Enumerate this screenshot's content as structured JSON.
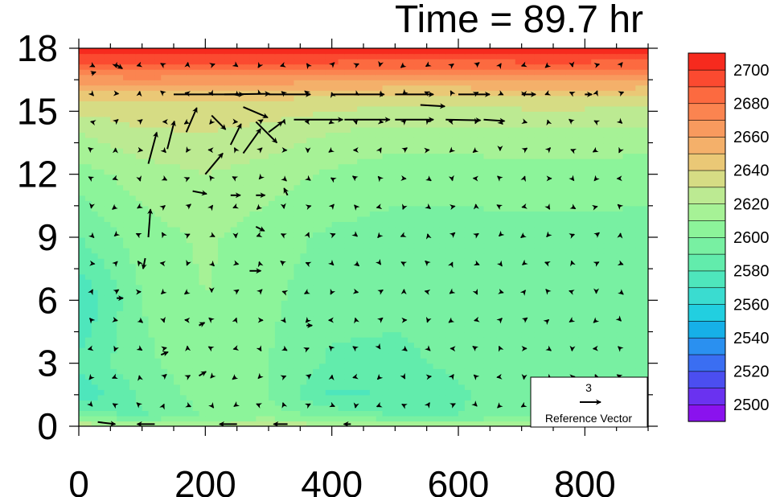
{
  "chart_data": {
    "type": "heatmap",
    "title": "Time = 89.7 hr",
    "x_ticks": [
      "0",
      "200",
      "400",
      "600",
      "800"
    ],
    "x_tick_values": [
      0,
      200,
      400,
      600,
      800
    ],
    "xlim": [
      0,
      900
    ],
    "y_ticks": [
      "0",
      "3",
      "6",
      "9",
      "12",
      "15",
      "18"
    ],
    "y_tick_values": [
      0,
      3,
      6,
      9,
      12,
      15,
      18
    ],
    "ylim": [
      0,
      18
    ],
    "colorbar": {
      "levels": [
        2490,
        2500,
        2510,
        2520,
        2530,
        2540,
        2550,
        2560,
        2570,
        2580,
        2590,
        2600,
        2610,
        2620,
        2630,
        2640,
        2650,
        2660,
        2670,
        2680,
        2690,
        2700,
        2710
      ],
      "labels": [
        "2500",
        "2520",
        "2540",
        "2560",
        "2580",
        "2600",
        "2620",
        "2640",
        "2660",
        "2680",
        "2700"
      ],
      "label_values": [
        2500,
        2520,
        2540,
        2560,
        2580,
        2600,
        2620,
        2640,
        2660,
        2680,
        2700
      ],
      "colors": [
        "#8a12ee",
        "#6a32f0",
        "#4b4ef0",
        "#3a6ef2",
        "#2a90f0",
        "#16b0e8",
        "#22cfe0",
        "#3adcd0",
        "#4ee6bc",
        "#62ecac",
        "#78f0a2",
        "#8cf49a",
        "#a6f296",
        "#bcea92",
        "#d6dc84",
        "#eac876",
        "#f4b06a",
        "#f89a5e",
        "#fb8450",
        "#fc6a40",
        "#fb4a30",
        "#f62a1e"
      ]
    },
    "field_rows": [
      {
        "y": 0.0,
        "values": [
          2630,
          2625,
          2625,
          2628,
          2625,
          2622,
          2620,
          2622,
          2620,
          2622
        ]
      },
      {
        "y": 0.5,
        "values": [
          2595,
          2588,
          2600,
          2605,
          2598,
          2590,
          2590,
          2598,
          2600,
          2598
        ]
      },
      {
        "y": 1.5,
        "values": [
          2572,
          2592,
          2605,
          2600,
          2578,
          2580,
          2588,
          2598,
          2596,
          2594
        ]
      },
      {
        "y": 3,
        "values": [
          2582,
          2598,
          2605,
          2600,
          2588,
          2588,
          2592,
          2596,
          2594,
          2594
        ]
      },
      {
        "y": 6,
        "values": [
          2570,
          2600,
          2610,
          2602,
          2594,
          2592,
          2592,
          2592,
          2592,
          2592
        ]
      },
      {
        "y": 9,
        "values": [
          2590,
          2605,
          2612,
          2604,
          2598,
          2596,
          2596,
          2596,
          2596,
          2596
        ]
      },
      {
        "y": 12,
        "values": [
          2605,
          2615,
          2620,
          2615,
          2608,
          2604,
          2604,
          2606,
          2606,
          2604
        ]
      },
      {
        "y": 14,
        "values": [
          2620,
          2628,
          2630,
          2626,
          2620,
          2616,
          2616,
          2618,
          2618,
          2616
        ]
      },
      {
        "y": 15.5,
        "values": [
          2638,
          2640,
          2640,
          2638,
          2635,
          2632,
          2632,
          2634,
          2634,
          2632
        ]
      },
      {
        "y": 16.5,
        "values": [
          2665,
          2666,
          2665,
          2664,
          2662,
          2660,
          2660,
          2662,
          2662,
          2660
        ]
      },
      {
        "y": 17.2,
        "values": [
          2690,
          2690,
          2690,
          2688,
          2686,
          2684,
          2684,
          2686,
          2686,
          2684
        ]
      },
      {
        "y": 18.0,
        "values": [
          2705,
          2705,
          2705,
          2705,
          2705,
          2705,
          2705,
          2705,
          2705,
          2705
        ]
      }
    ],
    "field_x": [
      0,
      100,
      200,
      300,
      400,
      500,
      600,
      700,
      800,
      900
    ],
    "vectors": [
      {
        "x": 20,
        "y": 16.8,
        "u": 0.6,
        "v": 0.2
      },
      {
        "x": 60,
        "y": 17.2,
        "u": 0.8,
        "v": -0.5
      },
      {
        "x": 150,
        "y": 15.8,
        "u": 10.0,
        "v": 0.0
      },
      {
        "x": 230,
        "y": 15.8,
        "u": 6.5,
        "v": 0.1
      },
      {
        "x": 300,
        "y": 15.8,
        "u": 6.0,
        "v": 0.0
      },
      {
        "x": 400,
        "y": 15.8,
        "u": 7.5,
        "v": 0.0
      },
      {
        "x": 500,
        "y": 15.8,
        "u": 5.5,
        "v": 0.0
      },
      {
        "x": 600,
        "y": 15.8,
        "u": 4.5,
        "v": 0.0
      },
      {
        "x": 700,
        "y": 15.8,
        "u": 2.0,
        "v": 0.0
      },
      {
        "x": 800,
        "y": 15.8,
        "u": 1.0,
        "v": 0.0
      },
      {
        "x": 340,
        "y": 14.6,
        "u": 7.0,
        "v": 0.0
      },
      {
        "x": 420,
        "y": 14.6,
        "u": 6.5,
        "v": 0.0
      },
      {
        "x": 500,
        "y": 14.6,
        "u": 5.5,
        "v": 0.0
      },
      {
        "x": 580,
        "y": 14.6,
        "u": 5.0,
        "v": -0.1
      },
      {
        "x": 640,
        "y": 14.6,
        "u": 3.0,
        "v": -0.2
      },
      {
        "x": 540,
        "y": 15.3,
        "u": 3.5,
        "v": -0.2
      },
      {
        "x": 110,
        "y": 12.5,
        "u": 1.2,
        "v": 4.5
      },
      {
        "x": 140,
        "y": 13.2,
        "u": 1.0,
        "v": 4.0
      },
      {
        "x": 170,
        "y": 14.0,
        "u": 1.5,
        "v": 3.5
      },
      {
        "x": 210,
        "y": 14.8,
        "u": 2.0,
        "v": -2.0
      },
      {
        "x": 240,
        "y": 13.4,
        "u": 1.5,
        "v": 3.0
      },
      {
        "x": 200,
        "y": 12.0,
        "u": 2.5,
        "v": 3.0
      },
      {
        "x": 260,
        "y": 13.0,
        "u": 2.5,
        "v": 3.5
      },
      {
        "x": 280,
        "y": 14.5,
        "u": 3.0,
        "v": -3.0
      },
      {
        "x": 300,
        "y": 14.0,
        "u": 2.0,
        "v": 1.5
      },
      {
        "x": 260,
        "y": 15.2,
        "u": 3.5,
        "v": -1.5
      },
      {
        "x": 110,
        "y": 9.0,
        "u": 0.3,
        "v": 4.0
      },
      {
        "x": 105,
        "y": 8.0,
        "u": -0.3,
        "v": -1.5
      },
      {
        "x": 180,
        "y": 11.2,
        "u": 2.0,
        "v": -0.4
      },
      {
        "x": 240,
        "y": 11.0,
        "u": 1.4,
        "v": 0.0
      },
      {
        "x": 280,
        "y": 11.0,
        "u": 1.3,
        "v": 0.0
      },
      {
        "x": 330,
        "y": 11.0,
        "u": -0.5,
        "v": 1.0
      },
      {
        "x": 280,
        "y": 9.5,
        "u": 1.2,
        "v": -0.6
      },
      {
        "x": 270,
        "y": 7.4,
        "u": 1.6,
        "v": 0.0
      },
      {
        "x": 60,
        "y": 6.1,
        "u": 0.9,
        "v": 0.0
      },
      {
        "x": 190,
        "y": 4.8,
        "u": 0.8,
        "v": 0.4
      },
      {
        "x": 360,
        "y": 4.8,
        "u": 0.8,
        "v": 0.0
      },
      {
        "x": 130,
        "y": 3.4,
        "u": 1.0,
        "v": 0.4
      },
      {
        "x": 190,
        "y": 2.4,
        "u": 1.0,
        "v": 0.6
      },
      {
        "x": 30,
        "y": 0.2,
        "u": 2.5,
        "v": -0.3
      },
      {
        "x": 120,
        "y": 0.1,
        "u": -2.5,
        "v": 0.0
      },
      {
        "x": 250,
        "y": 0.1,
        "u": -2.5,
        "v": 0.0
      },
      {
        "x": 330,
        "y": 0.1,
        "u": -2.0,
        "v": 0.0
      },
      {
        "x": 430,
        "y": 0.1,
        "u": -1.0,
        "v": 0.0
      }
    ],
    "reference_vector": {
      "magnitude": "3",
      "label": "Reference Vector"
    }
  }
}
